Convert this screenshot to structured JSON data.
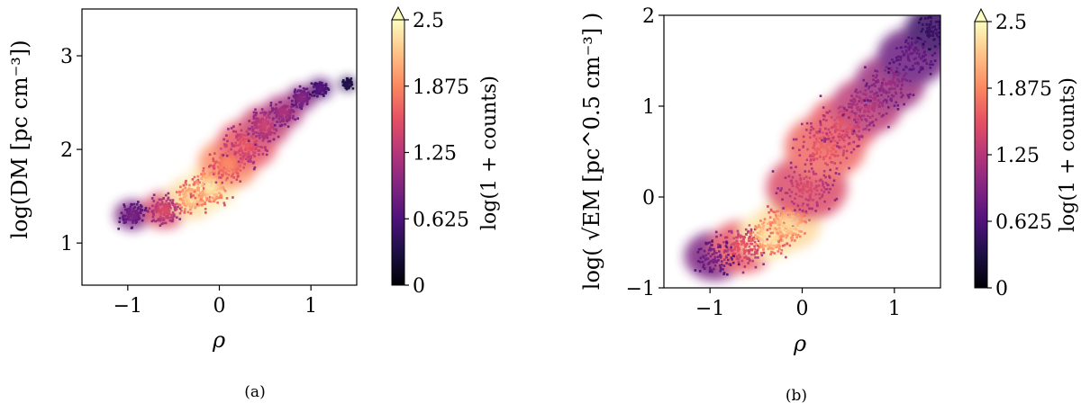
{
  "chart_data": [
    {
      "panel": "(a)",
      "type": "heatmap",
      "xlabel": "ρ",
      "ylabel": "log(DM [pc cm⁻³])",
      "xlim": [
        -1.5,
        1.5
      ],
      "ylim": [
        0.55,
        3.5
      ],
      "xticks": [
        -1,
        0,
        1
      ],
      "xtick_labels": [
        "−1",
        "0",
        "1"
      ],
      "yticks": [
        1,
        2,
        3
      ],
      "ytick_labels": [
        "1",
        "2",
        "3"
      ],
      "colorbar": {
        "label": "log(1 + counts)",
        "ticks": [
          0,
          0.625,
          1.25,
          1.875,
          2.5
        ],
        "tick_labels": [
          "0",
          "0.625",
          "1.25",
          "1.875",
          "2.5"
        ],
        "extend": "max",
        "cmap": [
          "#000004",
          "#1c1044",
          "#4f127b",
          "#812581",
          "#b5367a",
          "#e55064",
          "#fb8761",
          "#fec287",
          "#fcfdbf"
        ]
      },
      "ridge": [
        {
          "x": -0.95,
          "y": 1.3,
          "w": 0.18,
          "c": 0.9
        },
        {
          "x": -0.6,
          "y": 1.35,
          "w": 0.22,
          "c": 1.5
        },
        {
          "x": -0.3,
          "y": 1.48,
          "w": 0.25,
          "c": 2.3
        },
        {
          "x": -0.1,
          "y": 1.6,
          "w": 0.27,
          "c": 2.4
        },
        {
          "x": 0.1,
          "y": 1.85,
          "w": 0.3,
          "c": 1.9
        },
        {
          "x": 0.3,
          "y": 2.05,
          "w": 0.3,
          "c": 1.6
        },
        {
          "x": 0.5,
          "y": 2.25,
          "w": 0.25,
          "c": 1.4
        },
        {
          "x": 0.7,
          "y": 2.4,
          "w": 0.2,
          "c": 1.2
        },
        {
          "x": 0.9,
          "y": 2.55,
          "w": 0.15,
          "c": 1.0
        },
        {
          "x": 1.1,
          "y": 2.65,
          "w": 0.12,
          "c": 0.7
        },
        {
          "x": 1.4,
          "y": 2.7,
          "w": 0.08,
          "c": 0.4
        }
      ]
    },
    {
      "panel": "(b)",
      "type": "heatmap",
      "xlabel": "ρ",
      "ylabel": "log( √EM [pc^0.5 cm⁻³] )",
      "xlim": [
        -1.5,
        1.5
      ],
      "ylim": [
        -1,
        2
      ],
      "xticks": [
        -1,
        0,
        1
      ],
      "xtick_labels": [
        "−1",
        "0",
        "1"
      ],
      "yticks": [
        -1,
        0,
        1,
        2
      ],
      "ytick_labels": [
        "−1",
        "0",
        "1",
        "2"
      ],
      "colorbar": {
        "label": "log(1 + counts)",
        "ticks": [
          0,
          0.625,
          1.25,
          1.875,
          2.5
        ],
        "tick_labels": [
          "0",
          "0.625",
          "1.25",
          "1.875",
          "2.5"
        ],
        "extend": "max",
        "cmap": [
          "#000004",
          "#1c1044",
          "#4f127b",
          "#812581",
          "#b5367a",
          "#e55064",
          "#fb8761",
          "#fec287",
          "#fcfdbf"
        ]
      },
      "ridge": [
        {
          "x": -0.95,
          "y": -0.65,
          "w": 0.3,
          "c": 0.9
        },
        {
          "x": -0.65,
          "y": -0.55,
          "w": 0.32,
          "c": 1.6
        },
        {
          "x": -0.35,
          "y": -0.42,
          "w": 0.3,
          "c": 2.4
        },
        {
          "x": -0.15,
          "y": -0.3,
          "w": 0.32,
          "c": 2.3
        },
        {
          "x": 0.05,
          "y": 0.1,
          "w": 0.4,
          "c": 1.5
        },
        {
          "x": 0.25,
          "y": 0.55,
          "w": 0.4,
          "c": 1.7
        },
        {
          "x": 0.45,
          "y": 0.8,
          "w": 0.35,
          "c": 1.6
        },
        {
          "x": 0.7,
          "y": 1.0,
          "w": 0.35,
          "c": 1.3
        },
        {
          "x": 0.95,
          "y": 1.25,
          "w": 0.35,
          "c": 1.1
        },
        {
          "x": 1.2,
          "y": 1.55,
          "w": 0.35,
          "c": 0.8
        },
        {
          "x": 1.45,
          "y": 1.85,
          "w": 0.3,
          "c": 0.5
        }
      ]
    }
  ],
  "captions": [
    "(a)",
    "(b)"
  ]
}
